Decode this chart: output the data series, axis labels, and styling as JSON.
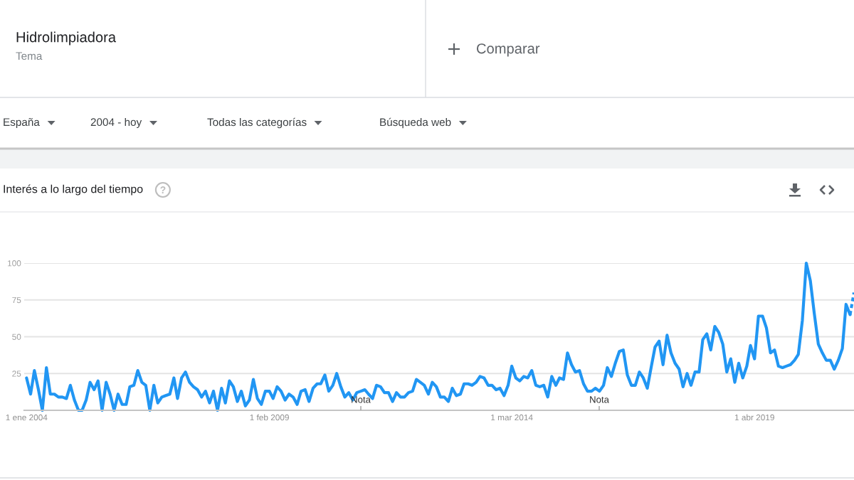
{
  "chart_data": {
    "type": "line",
    "title": "Interés a lo largo del tiempo",
    "annotations": [
      "Hidrolimpiadora",
      "Tema",
      "Comparar",
      "España",
      "2004 - hoy",
      "Todas las categorías",
      "Búsqueda web",
      "Nota",
      "Nota"
    ],
    "x": [
      "2004-01",
      "2004-02",
      "2004-03",
      "2004-04",
      "2004-05",
      "2004-06",
      "2004-07",
      "2004-08",
      "2004-09",
      "2004-10",
      "2004-11",
      "2004-12",
      "2005-01",
      "2005-02",
      "2005-03",
      "2005-04",
      "2005-05",
      "2005-06",
      "2005-07",
      "2005-08",
      "2005-09",
      "2005-10",
      "2005-11",
      "2005-12",
      "2006-01",
      "2006-02",
      "2006-03",
      "2006-04",
      "2006-05",
      "2006-06",
      "2006-07",
      "2006-08",
      "2006-09",
      "2006-10",
      "2006-11",
      "2006-12",
      "2007-01",
      "2007-02",
      "2007-03",
      "2007-04",
      "2007-05",
      "2007-06",
      "2007-07",
      "2007-08",
      "2007-09",
      "2007-10",
      "2007-11",
      "2007-12",
      "2008-01",
      "2008-02",
      "2008-03",
      "2008-04",
      "2008-05",
      "2008-06",
      "2008-07",
      "2008-08",
      "2008-09",
      "2008-10",
      "2008-11",
      "2008-12",
      "2009-01",
      "2009-02",
      "2009-03",
      "2009-04",
      "2009-05",
      "2009-06",
      "2009-07",
      "2009-08",
      "2009-09",
      "2009-10",
      "2009-11",
      "2009-12",
      "2010-01",
      "2010-02",
      "2010-03",
      "2010-04",
      "2010-05",
      "2010-06",
      "2010-07",
      "2010-08",
      "2010-09",
      "2010-10",
      "2010-11",
      "2010-12",
      "2011-01",
      "2011-02",
      "2011-03",
      "2011-04",
      "2011-05",
      "2011-06",
      "2011-07",
      "2011-08",
      "2011-09",
      "2011-10",
      "2011-11",
      "2011-12",
      "2012-01",
      "2012-02",
      "2012-03",
      "2012-04",
      "2012-05",
      "2012-06",
      "2012-07",
      "2012-08",
      "2012-09",
      "2012-10",
      "2012-11",
      "2012-12",
      "2013-01",
      "2013-02",
      "2013-03",
      "2013-04",
      "2013-05",
      "2013-06",
      "2013-07",
      "2013-08",
      "2013-09",
      "2013-10",
      "2013-11",
      "2013-12",
      "2014-01",
      "2014-02",
      "2014-03",
      "2014-04",
      "2014-05",
      "2014-06",
      "2014-07",
      "2014-08",
      "2014-09",
      "2014-10",
      "2014-11",
      "2014-12",
      "2015-01",
      "2015-02",
      "2015-03",
      "2015-04",
      "2015-05",
      "2015-06",
      "2015-07",
      "2015-08",
      "2015-09",
      "2015-10",
      "2015-11",
      "2015-12",
      "2016-01",
      "2016-02",
      "2016-03",
      "2016-04",
      "2016-05",
      "2016-06",
      "2016-07",
      "2016-08",
      "2016-09",
      "2016-10",
      "2016-11",
      "2016-12",
      "2017-01",
      "2017-02",
      "2017-03",
      "2017-04",
      "2017-05",
      "2017-06",
      "2017-07",
      "2017-08",
      "2017-09",
      "2017-10",
      "2017-11",
      "2017-12",
      "2018-01",
      "2018-02",
      "2018-03",
      "2018-04",
      "2018-05",
      "2018-06",
      "2018-07",
      "2018-08",
      "2018-09",
      "2018-10",
      "2018-11",
      "2018-12",
      "2019-01",
      "2019-02",
      "2019-03",
      "2019-04",
      "2019-05",
      "2019-06",
      "2019-07",
      "2019-08",
      "2019-09",
      "2019-10",
      "2019-11",
      "2019-12",
      "2020-01",
      "2020-02",
      "2020-03",
      "2020-04",
      "2020-05",
      "2020-06",
      "2020-07",
      "2020-08",
      "2020-09",
      "2020-10",
      "2020-11",
      "2020-12",
      "2021-01",
      "2021-02",
      "2021-03",
      "2021-04"
    ],
    "series": [
      {
        "color": "#2196f3",
        "values": [
          22,
          11,
          27,
          14,
          0,
          29,
          11,
          11,
          9,
          9,
          8,
          17,
          7,
          0,
          0,
          7,
          19,
          14,
          20,
          0,
          19,
          11,
          0,
          11,
          4,
          4,
          16,
          17,
          27,
          19,
          17,
          0,
          17,
          5,
          9,
          10,
          11,
          22,
          8,
          22,
          26,
          19,
          16,
          14,
          9,
          13,
          5,
          13,
          0,
          15,
          5,
          20,
          16,
          6,
          13,
          3,
          7,
          21,
          8,
          4,
          13,
          13,
          8,
          16,
          13,
          7,
          11,
          9,
          4,
          13,
          14,
          6,
          15,
          18,
          18,
          24,
          13,
          17,
          25,
          16,
          9,
          12,
          7,
          12,
          13,
          14,
          11,
          8,
          17,
          16,
          12,
          12,
          6,
          12,
          9,
          9,
          12,
          13,
          21,
          19,
          17,
          11,
          19,
          16,
          9,
          9,
          6,
          15,
          10,
          11,
          18,
          18,
          17,
          19,
          23,
          22,
          17,
          17,
          14,
          15,
          10,
          17,
          30,
          22,
          20,
          23,
          22,
          27,
          17,
          16,
          17,
          9,
          23,
          17,
          22,
          21,
          39,
          31,
          26,
          27,
          18,
          13,
          13,
          15,
          13,
          17,
          29,
          23,
          32,
          40,
          41,
          24,
          17,
          17,
          26,
          22,
          15,
          30,
          43,
          47,
          31,
          51,
          39,
          32,
          28,
          16,
          25,
          17,
          26,
          26,
          48,
          52,
          41,
          57,
          53,
          45,
          26,
          35,
          19,
          32,
          22,
          30,
          44,
          35,
          64,
          64,
          56,
          39,
          41,
          30,
          29,
          30,
          31,
          34,
          38,
          61,
          100,
          88,
          66,
          45,
          39,
          34,
          34,
          28,
          34,
          42,
          72,
          65
        ]
      },
      {
        "color": "#2196f3",
        "line_style": "dashed",
        "x": [
          "2021-04",
          "2021-05"
        ],
        "values": [
          65,
          80
        ]
      }
    ],
    "xlim": [
      "2003-12-14",
      "2021-05-01"
    ],
    "xticks": [
      {
        "value": "2004-01-01",
        "label": "1 ene 2004"
      },
      {
        "value": "2009-02-01",
        "label": "1 feb 2009"
      },
      {
        "value": "2014-03-01",
        "label": "1 mar 2014"
      },
      {
        "value": "2019-04-01",
        "label": "1 abr 2019"
      }
    ],
    "ylim": [
      0,
      100
    ],
    "yticks": [
      25,
      50,
      75,
      100
    ],
    "grid": "y"
  }
}
